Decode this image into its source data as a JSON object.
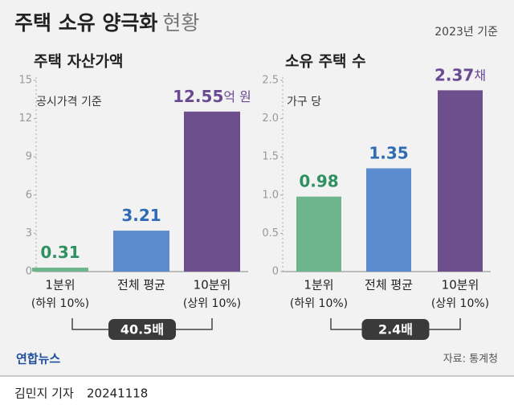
{
  "title": "주택 소유 양극화",
  "title_suffix": "현황",
  "date_note": "2023년 기준",
  "source": "자료: 통계청",
  "logo": "연합뉴스",
  "reporter": "김민지 기자",
  "date": "20241118",
  "chart_data": [
    {
      "type": "bar",
      "title": "주택 자산가액",
      "subtitle": "공시가격 기준",
      "categories": [
        "1분위",
        "전체 평균",
        "10분위"
      ],
      "category_notes": [
        "(하위 10%)",
        null,
        "(상위 10%)"
      ],
      "values": [
        0.31,
        3.21,
        12.55
      ],
      "unit": "억 원",
      "colors": [
        "#6db58c",
        "#5b8ccd",
        "#6e4f8d"
      ],
      "label_colors": [
        "#2f9160",
        "#2f6cb5",
        "#6a4a93"
      ],
      "ylim": [
        0,
        15
      ],
      "yticks": [
        0,
        3,
        6,
        9,
        12,
        15
      ],
      "grid": false,
      "annotation": "40.5배"
    },
    {
      "type": "bar",
      "title": "소유 주택 수",
      "subtitle": "가구 당",
      "categories": [
        "1분위",
        "전체 평균",
        "10분위"
      ],
      "category_notes": [
        "(하위 10%)",
        null,
        "(상위 10%)"
      ],
      "values": [
        0.98,
        1.35,
        2.37
      ],
      "unit": "채",
      "colors": [
        "#6db58c",
        "#5b8ccd",
        "#6e4f8d"
      ],
      "label_colors": [
        "#2f9160",
        "#2f6cb5",
        "#6a4a93"
      ],
      "ylim": [
        0,
        2.5
      ],
      "yticks": [
        0,
        0.5,
        {
          "value": 1,
          "label": "1.0"
        },
        1.5,
        {
          "value": 2,
          "label": "2.0"
        },
        2.5
      ],
      "grid": false,
      "annotation": "2.4배"
    }
  ]
}
